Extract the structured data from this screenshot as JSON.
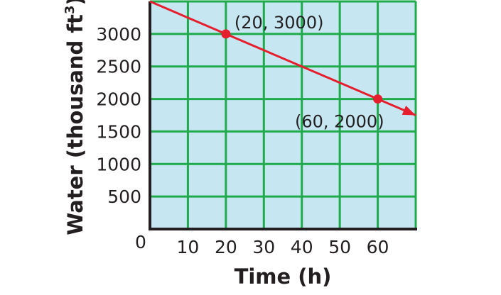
{
  "chart_data": {
    "type": "line",
    "xlabel": "Time (h)",
    "ylabel": "Water (thousand ft",
    "ylabel_superscript": "3",
    "ylabel_close": ")",
    "origin_label": "0",
    "xlim": [
      0,
      70
    ],
    "ylim": [
      0,
      3500
    ],
    "x_ticks": [
      "10",
      "20",
      "30",
      "40",
      "50",
      "60"
    ],
    "y_ticks": [
      "500",
      "1000",
      "1500",
      "2000",
      "2500",
      "3000"
    ],
    "grid": true,
    "background_color": "#c6e7f2",
    "grid_color": "#1faa4b",
    "line_color": "#e51f2e",
    "series": [
      {
        "x": [
          0,
          70
        ],
        "y": [
          3500,
          1750
        ]
      }
    ],
    "points": [
      {
        "x": 20,
        "y": 3000,
        "label": "(20, 3000)"
      },
      {
        "x": 60,
        "y": 2000,
        "label": "(60, 2000)"
      }
    ]
  }
}
